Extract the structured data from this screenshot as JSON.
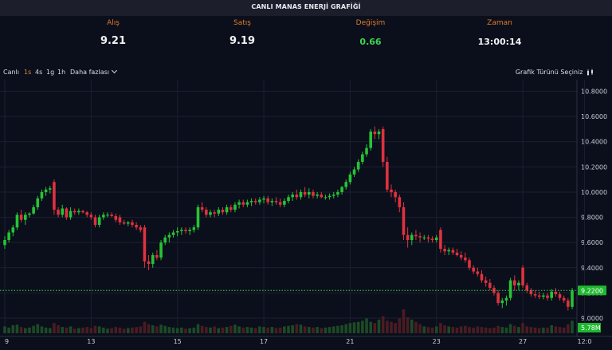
{
  "title": "CANLI MANAS ENERJİ GRAFİĞİ",
  "quotes": [
    {
      "label": "Alış",
      "value": "9.21"
    },
    {
      "label": "Satış",
      "value": "9.19"
    },
    {
      "label": "Değişim",
      "value": "0.66"
    },
    {
      "label": "Zaman",
      "value": "13:00:14"
    }
  ],
  "toolbar": {
    "live": "Canlı",
    "intervals": [
      "1s",
      "4s",
      "1g",
      "1h"
    ],
    "active_interval": "1s",
    "more": "Daha fazlası",
    "chart_type": "Grafik Türünü Seçiniz"
  },
  "colors": {
    "up": "#26c436",
    "down": "#e0313f",
    "accent": "#e07a2e",
    "price_line": "#3ed34e"
  },
  "chart_data": {
    "type": "candlestick",
    "y_ticks": [
      "10.8000",
      "10.6000",
      "10.4000",
      "10.2000",
      "10.0000",
      "9.8000",
      "9.6000",
      "9.4000",
      "9.2000",
      "9.0000"
    ],
    "ylim": [
      8.88,
      10.86
    ],
    "x_ticks": [
      {
        "label": "9",
        "i": 0
      },
      {
        "label": "13",
        "i": 21
      },
      {
        "label": "15",
        "i": 42
      },
      {
        "label": "17",
        "i": 63
      },
      {
        "label": "21",
        "i": 84
      },
      {
        "label": "23",
        "i": 105
      },
      {
        "label": "27",
        "i": 126
      },
      {
        "label": "12:0",
        "i": 141
      }
    ],
    "current_price": "9.2200",
    "current_value": 9.22,
    "volume_label": "5.78M",
    "ohlc": [
      [
        9.58,
        9.65,
        9.55,
        9.62
      ],
      [
        9.62,
        9.7,
        9.6,
        9.68
      ],
      [
        9.68,
        9.74,
        9.65,
        9.72
      ],
      [
        9.72,
        9.84,
        9.7,
        9.82
      ],
      [
        9.82,
        9.86,
        9.76,
        9.78
      ],
      [
        9.78,
        9.84,
        9.74,
        9.82
      ],
      [
        9.82,
        9.84,
        9.8,
        9.83
      ],
      [
        9.83,
        9.9,
        9.82,
        9.88
      ],
      [
        9.88,
        9.97,
        9.86,
        9.95
      ],
      [
        9.95,
        10.02,
        9.93,
        10.0
      ],
      [
        10.0,
        10.04,
        9.97,
        10.02
      ],
      [
        10.02,
        10.05,
        9.99,
        10.03
      ],
      [
        10.08,
        10.1,
        9.82,
        9.86
      ],
      [
        9.86,
        9.88,
        9.8,
        9.82
      ],
      [
        9.82,
        9.9,
        9.8,
        9.87
      ],
      [
        9.87,
        9.88,
        9.78,
        9.8
      ],
      [
        9.8,
        9.88,
        9.78,
        9.85
      ],
      [
        9.85,
        9.87,
        9.82,
        9.84
      ],
      [
        9.84,
        9.87,
        9.82,
        9.85
      ],
      [
        9.85,
        9.86,
        9.83,
        9.84
      ],
      [
        9.84,
        9.85,
        9.8,
        9.82
      ],
      [
        9.82,
        9.84,
        9.78,
        9.8
      ],
      [
        9.8,
        9.82,
        9.72,
        9.74
      ],
      [
        9.74,
        9.82,
        9.72,
        9.8
      ],
      [
        9.8,
        9.84,
        9.78,
        9.82
      ],
      [
        9.82,
        9.84,
        9.8,
        9.82
      ],
      [
        9.82,
        9.84,
        9.8,
        9.81
      ],
      [
        9.81,
        9.83,
        9.76,
        9.78
      ],
      [
        9.8,
        9.82,
        9.74,
        9.76
      ],
      [
        9.76,
        9.78,
        9.74,
        9.75
      ],
      [
        9.75,
        9.77,
        9.73,
        9.76
      ],
      [
        9.76,
        9.78,
        9.72,
        9.74
      ],
      [
        9.74,
        9.76,
        9.7,
        9.72
      ],
      [
        9.72,
        9.74,
        9.68,
        9.7
      ],
      [
        9.72,
        9.74,
        9.4,
        9.45
      ],
      [
        9.45,
        9.5,
        9.38,
        9.43
      ],
      [
        9.43,
        9.52,
        9.4,
        9.5
      ],
      [
        9.5,
        9.54,
        9.46,
        9.48
      ],
      [
        9.48,
        9.62,
        9.46,
        9.6
      ],
      [
        9.6,
        9.66,
        9.58,
        9.64
      ],
      [
        9.64,
        9.68,
        9.6,
        9.66
      ],
      [
        9.66,
        9.7,
        9.64,
        9.68
      ],
      [
        9.68,
        9.72,
        9.65,
        9.69
      ],
      [
        9.69,
        9.72,
        9.66,
        9.7
      ],
      [
        9.7,
        9.72,
        9.67,
        9.69
      ],
      [
        9.69,
        9.72,
        9.66,
        9.7
      ],
      [
        9.7,
        9.74,
        9.68,
        9.72
      ],
      [
        9.72,
        9.9,
        9.7,
        9.88
      ],
      [
        9.88,
        9.92,
        9.84,
        9.86
      ],
      [
        9.86,
        9.88,
        9.8,
        9.82
      ],
      [
        9.82,
        9.86,
        9.8,
        9.84
      ],
      [
        9.84,
        9.86,
        9.8,
        9.83
      ],
      [
        9.83,
        9.88,
        9.81,
        9.86
      ],
      [
        9.86,
        9.88,
        9.82,
        9.84
      ],
      [
        9.84,
        9.9,
        9.82,
        9.88
      ],
      [
        9.88,
        9.9,
        9.84,
        9.86
      ],
      [
        9.86,
        9.92,
        9.84,
        9.9
      ],
      [
        9.9,
        9.94,
        9.87,
        9.92
      ],
      [
        9.92,
        9.94,
        9.88,
        9.9
      ],
      [
        9.9,
        9.94,
        9.88,
        9.92
      ],
      [
        9.92,
        9.95,
        9.89,
        9.93
      ],
      [
        9.93,
        9.95,
        9.9,
        9.92
      ],
      [
        9.92,
        9.96,
        9.9,
        9.94
      ],
      [
        9.94,
        9.97,
        9.91,
        9.95
      ],
      [
        9.95,
        9.97,
        9.9,
        9.92
      ],
      [
        9.92,
        9.95,
        9.89,
        9.93
      ],
      [
        9.93,
        9.96,
        9.9,
        9.92
      ],
      [
        9.92,
        9.95,
        9.88,
        9.9
      ],
      [
        9.9,
        9.95,
        9.88,
        9.93
      ],
      [
        9.93,
        9.98,
        9.91,
        9.96
      ],
      [
        9.96,
        10.0,
        9.93,
        9.98
      ],
      [
        9.98,
        10.02,
        9.94,
        9.96
      ],
      [
        9.96,
        10.02,
        9.94,
        10.0
      ],
      [
        10.0,
        10.04,
        9.96,
        9.98
      ],
      [
        9.98,
        10.03,
        9.95,
        10.0
      ],
      [
        10.0,
        10.02,
        9.95,
        9.97
      ],
      [
        9.97,
        10.0,
        9.95,
        9.98
      ],
      [
        9.98,
        10.0,
        9.95,
        9.96
      ],
      [
        9.96,
        9.98,
        9.94,
        9.96
      ],
      [
        9.96,
        9.99,
        9.94,
        9.97
      ],
      [
        9.97,
        10.0,
        9.95,
        9.98
      ],
      [
        9.98,
        10.02,
        9.96,
        10.0
      ],
      [
        10.0,
        10.05,
        9.98,
        10.04
      ],
      [
        10.04,
        10.1,
        10.02,
        10.08
      ],
      [
        10.08,
        10.16,
        10.06,
        10.14
      ],
      [
        10.14,
        10.2,
        10.12,
        10.18
      ],
      [
        10.18,
        10.26,
        10.16,
        10.24
      ],
      [
        10.24,
        10.32,
        10.22,
        10.3
      ],
      [
        10.3,
        10.38,
        10.28,
        10.35
      ],
      [
        10.35,
        10.5,
        10.33,
        10.48
      ],
      [
        10.48,
        10.52,
        10.42,
        10.46
      ],
      [
        10.46,
        10.5,
        10.42,
        10.48
      ],
      [
        10.5,
        10.52,
        10.2,
        10.24
      ],
      [
        10.24,
        10.28,
        10.0,
        10.02
      ],
      [
        10.02,
        10.06,
        9.96,
        10.0
      ],
      [
        10.0,
        10.02,
        9.92,
        9.96
      ],
      [
        9.96,
        9.98,
        9.84,
        9.88
      ],
      [
        9.88,
        9.92,
        9.62,
        9.66
      ],
      [
        9.66,
        9.72,
        9.56,
        9.62
      ],
      [
        9.62,
        9.68,
        9.58,
        9.66
      ],
      [
        9.66,
        9.7,
        9.62,
        9.65
      ],
      [
        9.65,
        9.68,
        9.6,
        9.64
      ],
      [
        9.64,
        9.66,
        9.62,
        9.64
      ],
      [
        9.64,
        9.66,
        9.6,
        9.63
      ],
      [
        9.63,
        9.65,
        9.6,
        9.62
      ],
      [
        9.62,
        9.66,
        9.6,
        9.64
      ],
      [
        9.7,
        9.72,
        9.52,
        9.55
      ],
      [
        9.55,
        9.58,
        9.5,
        9.53
      ],
      [
        9.53,
        9.56,
        9.5,
        9.54
      ],
      [
        9.54,
        9.56,
        9.5,
        9.52
      ],
      [
        9.52,
        9.55,
        9.49,
        9.5
      ],
      [
        9.5,
        9.53,
        9.46,
        9.48
      ],
      [
        9.48,
        9.52,
        9.44,
        9.46
      ],
      [
        9.46,
        9.48,
        9.38,
        9.4
      ],
      [
        9.4,
        9.42,
        9.35,
        9.37
      ],
      [
        9.37,
        9.4,
        9.33,
        9.35
      ],
      [
        9.35,
        9.38,
        9.28,
        9.3
      ],
      [
        9.3,
        9.33,
        9.25,
        9.28
      ],
      [
        9.28,
        9.31,
        9.22,
        9.24
      ],
      [
        9.24,
        9.26,
        9.18,
        9.2
      ],
      [
        9.2,
        9.22,
        9.1,
        9.12
      ],
      [
        9.12,
        9.16,
        9.08,
        9.14
      ],
      [
        9.14,
        9.18,
        9.1,
        9.16
      ],
      [
        9.16,
        9.32,
        9.14,
        9.3
      ],
      [
        9.3,
        9.34,
        9.22,
        9.26
      ],
      [
        9.26,
        9.3,
        9.22,
        9.28
      ],
      [
        9.4,
        9.42,
        9.24,
        9.26
      ],
      [
        9.26,
        9.28,
        9.2,
        9.22
      ],
      [
        9.22,
        9.24,
        9.17,
        9.19
      ],
      [
        9.19,
        9.22,
        9.16,
        9.18
      ],
      [
        9.18,
        9.21,
        9.15,
        9.17
      ],
      [
        9.17,
        9.2,
        9.15,
        9.18
      ],
      [
        9.18,
        9.2,
        9.14,
        9.16
      ],
      [
        9.16,
        9.23,
        9.14,
        9.21
      ],
      [
        9.21,
        9.24,
        9.17,
        9.19
      ],
      [
        9.19,
        9.21,
        9.14,
        9.16
      ],
      [
        9.16,
        9.18,
        9.12,
        9.14
      ],
      [
        9.14,
        9.16,
        9.06,
        9.09
      ],
      [
        9.09,
        9.24,
        9.07,
        9.22
      ]
    ],
    "volume": [
      1.2,
      1.0,
      1.4,
      1.5,
      1.1,
      0.9,
      1.0,
      1.3,
      1.6,
      1.2,
      1.0,
      0.9,
      1.8,
      1.4,
      1.1,
      1.0,
      1.2,
      0.8,
      0.9,
      1.0,
      1.1,
      0.9,
      1.3,
      1.2,
      1.0,
      0.8,
      0.9,
      1.1,
      1.0,
      0.8,
      0.9,
      1.0,
      1.1,
      1.2,
      2.0,
      1.6,
      1.4,
      1.2,
      1.5,
      1.3,
      1.1,
      1.0,
      0.9,
      1.0,
      0.8,
      0.9,
      1.0,
      1.6,
      1.3,
      1.1,
      1.0,
      1.2,
      0.9,
      1.0,
      1.1,
      1.3,
      1.5,
      1.2,
      1.0,
      1.1,
      1.0,
      0.9,
      1.2,
      1.1,
      1.0,
      1.1,
      0.9,
      1.0,
      1.2,
      1.3,
      1.4,
      1.6,
      1.5,
      1.2,
      1.1,
      1.0,
      1.1,
      0.9,
      1.0,
      1.1,
      1.2,
      1.3,
      1.4,
      1.6,
      1.8,
      1.9,
      2.0,
      2.2,
      2.6,
      2.0,
      1.8,
      2.4,
      3.0,
      2.2,
      2.0,
      1.8,
      2.6,
      4.2,
      2.8,
      2.4,
      2.0,
      1.6,
      1.2,
      1.1,
      1.0,
      1.2,
      1.8,
      1.4,
      1.2,
      1.1,
      1.0,
      1.2,
      1.3,
      1.1,
      1.0,
      1.2,
      1.1,
      1.0,
      0.9,
      1.0,
      1.3,
      1.1,
      1.0,
      1.6,
      1.3,
      1.1,
      1.8,
      1.2,
      1.1,
      1.0,
      0.9,
      1.0,
      1.0,
      1.4,
      1.2,
      1.1,
      1.0,
      1.6,
      2.2
    ]
  }
}
